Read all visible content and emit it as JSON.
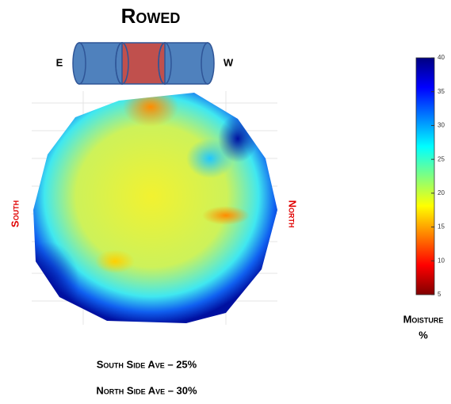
{
  "title": "Rowed",
  "bale": {
    "left_label": "E",
    "right_label": "W"
  },
  "plot": {
    "left_label": "South",
    "right_label": "North"
  },
  "colorbar": {
    "lim": [
      5,
      40
    ],
    "ticks": [
      5,
      10,
      15,
      20,
      25,
      30,
      35,
      40
    ],
    "label": "Moisture",
    "unit": "%"
  },
  "notes": [
    "South Side Ave – 25%",
    "North Side Ave – 30%"
  ]
}
